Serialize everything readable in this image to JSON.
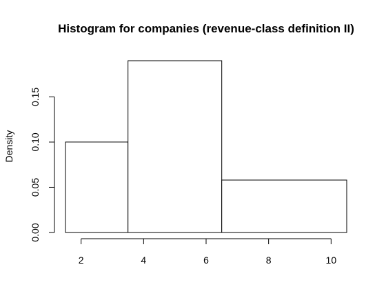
{
  "chart_data": {
    "type": "bar",
    "title": "Histogram for companies (revenue-class definition II)",
    "xlabel": "",
    "ylabel": "Density",
    "bins": [
      {
        "start": 1.5,
        "end": 3.5,
        "density": 0.1
      },
      {
        "start": 3.5,
        "end": 6.5,
        "density": 0.19
      },
      {
        "start": 6.5,
        "end": 10.5,
        "density": 0.058
      }
    ],
    "xlim": [
      1.5,
      10.5
    ],
    "ylim": [
      0,
      0.19
    ],
    "x_ticks": [
      2,
      4,
      6,
      8,
      10
    ],
    "x_tick_labels": [
      "2",
      "4",
      "6",
      "8",
      "10"
    ],
    "y_ticks": [
      0,
      0.05,
      0.1,
      0.15
    ],
    "y_tick_labels": [
      "0.00",
      "0.05",
      "0.10",
      "0.15"
    ],
    "grid": false,
    "legend": "none",
    "colors": {
      "bar_fill": "#ffffff",
      "bar_stroke": "#000000"
    }
  }
}
